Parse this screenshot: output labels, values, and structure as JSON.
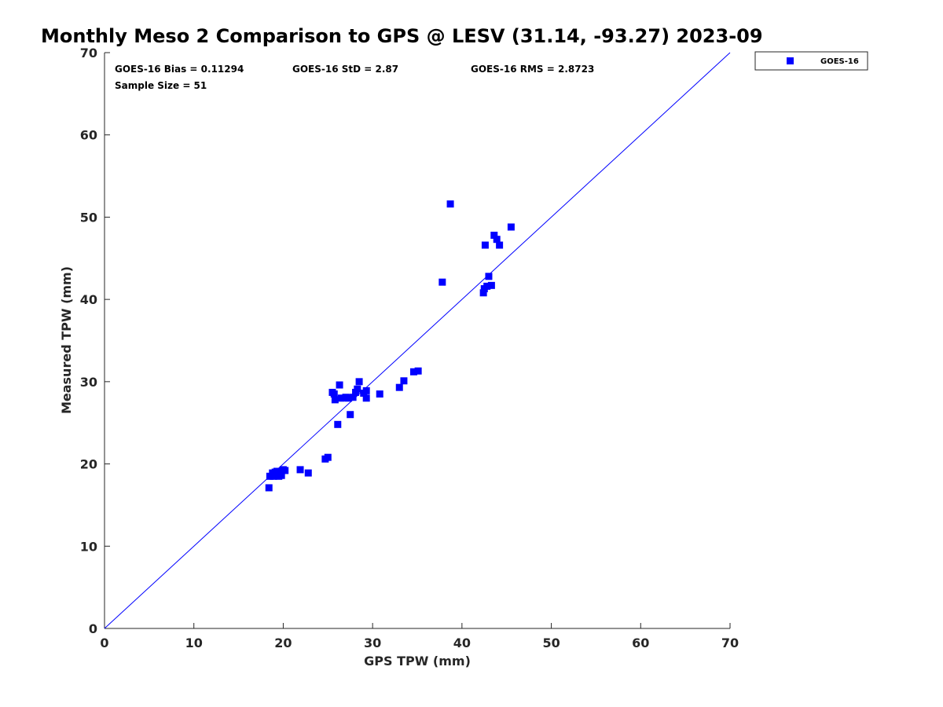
{
  "chart_data": {
    "type": "scatter",
    "title": "Monthly Meso 2 Comparison to GPS @ LESV (31.14, -93.27) 2023-09",
    "xlabel": "GPS TPW (mm)",
    "ylabel": "Measured TPW (mm)",
    "xlim": [
      0,
      70
    ],
    "ylim": [
      0,
      70
    ],
    "xticks": [
      0,
      10,
      20,
      30,
      40,
      50,
      60,
      70
    ],
    "yticks": [
      0,
      10,
      20,
      30,
      40,
      50,
      60,
      70
    ],
    "xtick_labels": [
      "0",
      "10",
      "20",
      "30",
      "40",
      "50",
      "60",
      "70"
    ],
    "ytick_labels": [
      "0",
      "10",
      "20",
      "30",
      "40",
      "50",
      "60",
      "70"
    ],
    "grid": false,
    "legend_position": "outside-top-right",
    "reference_line": {
      "from": [
        0,
        0
      ],
      "to": [
        70,
        70
      ],
      "color": "#0000ff"
    },
    "annotations": [
      {
        "text": "GOES-16 Bias = 0.11294"
      },
      {
        "text": "GOES-16 StD = 2.87"
      },
      {
        "text": "GOES-16 RMS = 2.8723"
      },
      {
        "text": "Sample Size = 51"
      }
    ],
    "series": [
      {
        "name": "GOES-16",
        "color": "#0000ff",
        "marker": "square",
        "points": [
          [
            18.4,
            17.1
          ],
          [
            18.5,
            18.5
          ],
          [
            18.8,
            18.9
          ],
          [
            18.9,
            18.5
          ],
          [
            19.0,
            18.7
          ],
          [
            19.1,
            19.0
          ],
          [
            19.2,
            18.6
          ],
          [
            19.3,
            19.1
          ],
          [
            19.5,
            18.5
          ],
          [
            19.6,
            18.8
          ],
          [
            19.7,
            19.1
          ],
          [
            19.8,
            18.6
          ],
          [
            20.0,
            19.3
          ],
          [
            20.2,
            19.2
          ],
          [
            21.9,
            19.3
          ],
          [
            22.8,
            18.9
          ],
          [
            24.7,
            20.6
          ],
          [
            25.0,
            20.8
          ],
          [
            25.5,
            28.7
          ],
          [
            25.7,
            28.5
          ],
          [
            25.8,
            27.8
          ],
          [
            26.1,
            24.8
          ],
          [
            26.3,
            29.6
          ],
          [
            26.5,
            28.0
          ],
          [
            27.0,
            28.1
          ],
          [
            27.3,
            28.0
          ],
          [
            27.5,
            26.0
          ],
          [
            27.8,
            28.1
          ],
          [
            28.1,
            28.7
          ],
          [
            28.3,
            29.1
          ],
          [
            28.5,
            30.0
          ],
          [
            29.0,
            28.6
          ],
          [
            29.3,
            28.9
          ],
          [
            29.3,
            28.0
          ],
          [
            30.8,
            28.5
          ],
          [
            33.0,
            29.3
          ],
          [
            33.5,
            30.1
          ],
          [
            34.6,
            31.2
          ],
          [
            35.1,
            31.3
          ],
          [
            37.8,
            42.1
          ],
          [
            38.7,
            51.6
          ],
          [
            42.4,
            40.8
          ],
          [
            42.5,
            41.3
          ],
          [
            42.6,
            46.6
          ],
          [
            42.8,
            41.6
          ],
          [
            43.0,
            42.8
          ],
          [
            43.3,
            41.7
          ],
          [
            43.6,
            47.8
          ],
          [
            43.9,
            47.3
          ],
          [
            44.2,
            46.6
          ],
          [
            45.5,
            48.8
          ]
        ]
      }
    ]
  }
}
